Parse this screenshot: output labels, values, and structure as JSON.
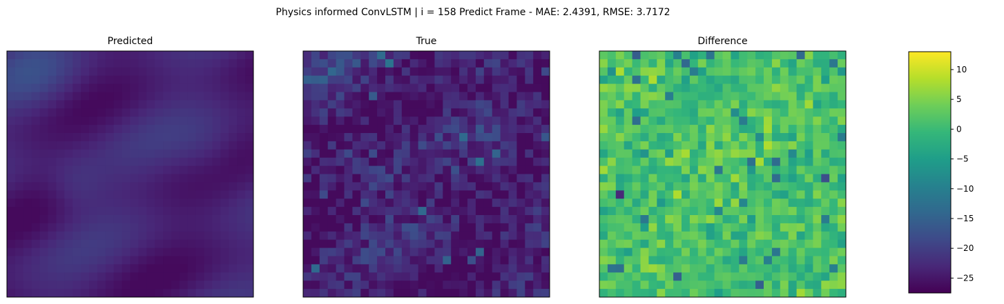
{
  "figure": {
    "suptitle": "Physics informed ConvLSTM | i = 158 Predict Frame - MAE: 2.4391, RMSE: 3.7172"
  },
  "colormap": {
    "name": "viridis",
    "stops": [
      "#440154",
      "#482878",
      "#3e4a89",
      "#31688e",
      "#26828e",
      "#1f9e89",
      "#35b779",
      "#6ece58",
      "#b5de2b",
      "#fde725"
    ]
  },
  "chart_data": [
    {
      "type": "heatmap",
      "title": "Predicted",
      "grid_size": 30,
      "axes_ticks_visible": false,
      "value_range_estimate": [
        -27,
        -14
      ],
      "description_values": "smooth field, mostly dark purple with teal-blue diagonal streaks; brightest near top-left and left-center"
    },
    {
      "type": "heatmap",
      "title": "True",
      "grid_size": 30,
      "axes_ticks_visible": false,
      "value_range_estimate": [
        -27,
        -8
      ],
      "description_values": "noisy field, mostly dark purple with scattered blue and teal pixels; few bright teal spots"
    },
    {
      "type": "heatmap",
      "title": "Difference",
      "grid_size": 30,
      "axes_ticks_visible": false,
      "value_range_estimate": [
        -27,
        13
      ],
      "description_values": "mostly green (around 0) with yellow-green patches and scattered blue/purple pixels"
    },
    {
      "type": "colorbar",
      "orientation": "vertical",
      "min": -27.5,
      "max": 13,
      "ticks": [
        10,
        5,
        0,
        -5,
        -10,
        -15,
        -20,
        -25
      ],
      "tick_labels": [
        "10",
        "5",
        "0",
        "−5",
        "−10",
        "−15",
        "−20",
        "−25"
      ]
    }
  ]
}
